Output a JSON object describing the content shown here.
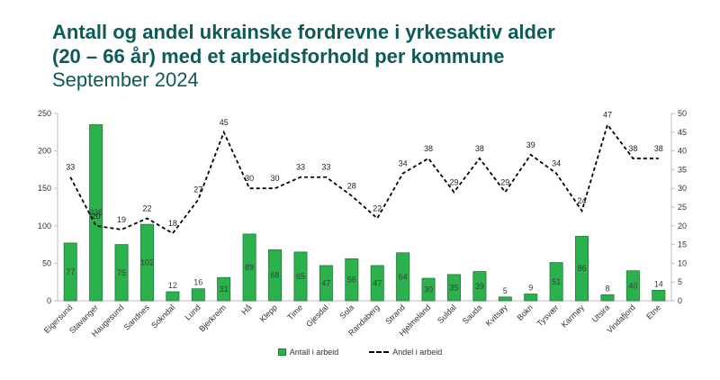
{
  "title_line1": "Antall og andel ukrainske fordrevne i yrkesaktiv alder",
  "title_line2": "(20 – 66 år) med et arbeidsforhold per kommune",
  "subtitle": "September 2024",
  "chart_data": {
    "type": "bar",
    "title": "Antall og andel ukrainske fordrevne i yrkesaktiv alder (20 – 66 år) med et arbeidsforhold per kommune",
    "subtitle": "September 2024",
    "categories": [
      "Eigersund",
      "Stavanger",
      "Haugesund",
      "Sandnes",
      "Sokndal",
      "Lund",
      "Bjerkreim",
      "Hå",
      "Klepp",
      "Time",
      "Gjesdal",
      "Sola",
      "Randaberg",
      "Strand",
      "Hjelmeland",
      "Suldal",
      "Sauda",
      "Kvitsøy",
      "Bokn",
      "Tysvær",
      "Karmøy",
      "Utsira",
      "Vindafjord",
      "Etne"
    ],
    "series": [
      {
        "name": "Antall i arbeid",
        "type": "bar",
        "axis": "left",
        "values": [
          77,
          235,
          75,
          102,
          12,
          16,
          31,
          89,
          68,
          65,
          47,
          56,
          47,
          64,
          30,
          35,
          39,
          5,
          9,
          51,
          86,
          8,
          40,
          14
        ]
      },
      {
        "name": "Andel i arbeid",
        "type": "line",
        "style": "dashed",
        "axis": "right",
        "values": [
          33,
          20,
          19,
          22,
          18,
          27,
          45,
          30,
          30,
          33,
          33,
          28,
          22,
          34,
          38,
          29,
          38,
          29,
          39,
          34,
          24,
          47,
          38,
          38
        ]
      }
    ],
    "ylim_left": [
      0,
      250
    ],
    "yticks_left": [
      0,
      50,
      100,
      150,
      200,
      250
    ],
    "ylim_right": [
      0,
      50
    ],
    "yticks_right": [
      0,
      5,
      10,
      15,
      20,
      25,
      30,
      35,
      40,
      45,
      50
    ],
    "grid": false,
    "legend_position": "bottom-center",
    "colors": {
      "bar_fill": "#2bb24c",
      "bar_stroke": "#1f7a35",
      "line": "#000000"
    }
  }
}
